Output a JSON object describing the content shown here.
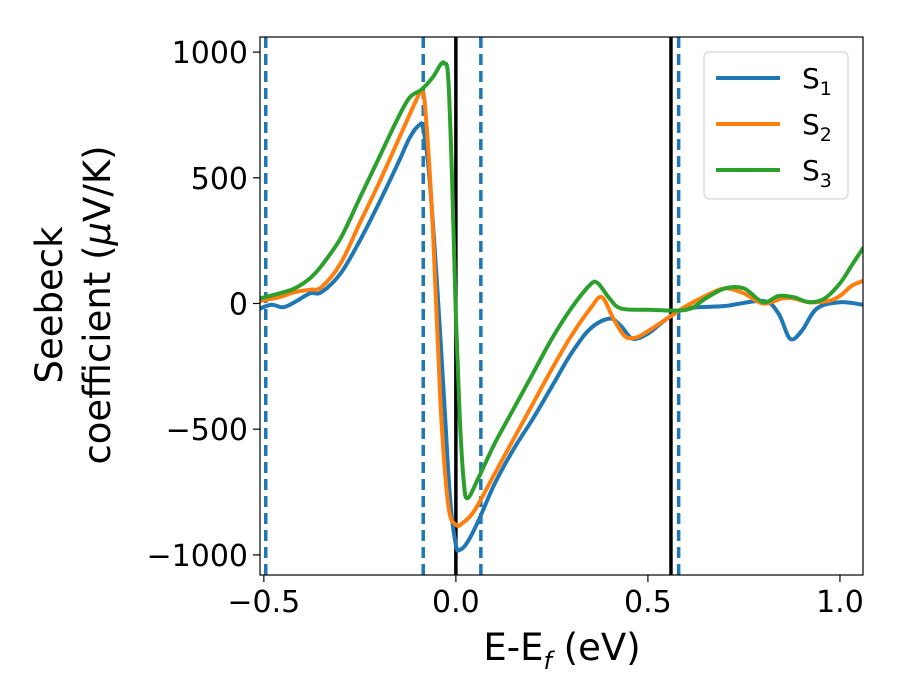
{
  "chart_data": {
    "type": "line",
    "xlabel": {
      "main": "E-E",
      "sub": "f",
      "unit": " (eV)"
    },
    "ylabel": {
      "line1": "Seebeck",
      "line2_text": "coefficient  (",
      "line2_mu": "μ",
      "line2_unit": "V/K)"
    },
    "xlim": [
      -0.51,
      1.06
    ],
    "ylim": [
      -1080,
      1060
    ],
    "x_ticks": [
      -0.5,
      0.0,
      0.5,
      1.0
    ],
    "x_tick_labels": [
      "−0.5",
      "0.0",
      "0.5",
      "1.0"
    ],
    "y_ticks": [
      -1000,
      -500,
      0,
      500,
      1000
    ],
    "y_tick_labels": [
      "−1000",
      "−500",
      "0",
      "500",
      "1000"
    ],
    "legend_position": "top-right",
    "reference_lines": [
      {
        "x": 0.0,
        "style": "solid",
        "color": "#000000"
      },
      {
        "x": 0.56,
        "style": "solid",
        "color": "#000000"
      },
      {
        "x": -0.495,
        "style": "dashed",
        "color": "#1f77b4"
      },
      {
        "x": -0.085,
        "style": "dashed",
        "color": "#1f77b4"
      },
      {
        "x": 0.065,
        "style": "dashed",
        "color": "#1f77b4"
      },
      {
        "x": 0.58,
        "style": "dashed",
        "color": "#1f77b4"
      }
    ],
    "series": [
      {
        "name": "S",
        "sub": "1",
        "color": "#1f77b4",
        "points": [
          [
            -0.51,
            -20
          ],
          [
            -0.48,
            -5
          ],
          [
            -0.45,
            -15
          ],
          [
            -0.42,
            5
          ],
          [
            -0.38,
            40
          ],
          [
            -0.35,
            45
          ],
          [
            -0.3,
            120
          ],
          [
            -0.25,
            250
          ],
          [
            -0.2,
            400
          ],
          [
            -0.15,
            560
          ],
          [
            -0.12,
            660
          ],
          [
            -0.095,
            710
          ],
          [
            -0.085,
            695
          ],
          [
            -0.07,
            520
          ],
          [
            -0.05,
            100
          ],
          [
            -0.03,
            -400
          ],
          [
            -0.015,
            -780
          ],
          [
            0.0,
            -960
          ],
          [
            0.01,
            -980
          ],
          [
            0.03,
            -950
          ],
          [
            0.06,
            -860
          ],
          [
            0.1,
            -720
          ],
          [
            0.15,
            -580
          ],
          [
            0.2,
            -460
          ],
          [
            0.25,
            -330
          ],
          [
            0.3,
            -200
          ],
          [
            0.35,
            -100
          ],
          [
            0.4,
            -60
          ],
          [
            0.43,
            -90
          ],
          [
            0.46,
            -140
          ],
          [
            0.5,
            -120
          ],
          [
            0.55,
            -60
          ],
          [
            0.6,
            -20
          ],
          [
            0.7,
            -10
          ],
          [
            0.8,
            10
          ],
          [
            0.84,
            -40
          ],
          [
            0.87,
            -140
          ],
          [
            0.9,
            -110
          ],
          [
            0.94,
            -20
          ],
          [
            1.0,
            5
          ],
          [
            1.06,
            -5
          ]
        ]
      },
      {
        "name": "S",
        "sub": "2",
        "color": "#ff7f0e",
        "points": [
          [
            -0.51,
            10
          ],
          [
            -0.46,
            25
          ],
          [
            -0.42,
            45
          ],
          [
            -0.38,
            55
          ],
          [
            -0.35,
            65
          ],
          [
            -0.3,
            160
          ],
          [
            -0.25,
            320
          ],
          [
            -0.2,
            480
          ],
          [
            -0.15,
            650
          ],
          [
            -0.1,
            820
          ],
          [
            -0.09,
            840
          ],
          [
            -0.08,
            780
          ],
          [
            -0.06,
            300
          ],
          [
            -0.04,
            -400
          ],
          [
            -0.02,
            -800
          ],
          [
            0.0,
            -880
          ],
          [
            0.02,
            -870
          ],
          [
            0.05,
            -820
          ],
          [
            0.1,
            -680
          ],
          [
            0.15,
            -540
          ],
          [
            0.2,
            -400
          ],
          [
            0.25,
            -260
          ],
          [
            0.3,
            -130
          ],
          [
            0.35,
            -20
          ],
          [
            0.38,
            25
          ],
          [
            0.41,
            -60
          ],
          [
            0.44,
            -130
          ],
          [
            0.47,
            -135
          ],
          [
            0.5,
            -110
          ],
          [
            0.55,
            -60
          ],
          [
            0.6,
            -10
          ],
          [
            0.65,
            30
          ],
          [
            0.7,
            60
          ],
          [
            0.75,
            40
          ],
          [
            0.8,
            0
          ],
          [
            0.85,
            20
          ],
          [
            0.88,
            20
          ],
          [
            0.92,
            5
          ],
          [
            0.97,
            10
          ],
          [
            1.0,
            30
          ],
          [
            1.03,
            70
          ],
          [
            1.06,
            90
          ]
        ]
      },
      {
        "name": "S",
        "sub": "3",
        "color": "#2ca02c",
        "points": [
          [
            -0.51,
            20
          ],
          [
            -0.46,
            40
          ],
          [
            -0.42,
            60
          ],
          [
            -0.38,
            100
          ],
          [
            -0.35,
            150
          ],
          [
            -0.3,
            260
          ],
          [
            -0.25,
            420
          ],
          [
            -0.2,
            580
          ],
          [
            -0.15,
            740
          ],
          [
            -0.12,
            820
          ],
          [
            -0.09,
            850
          ],
          [
            -0.06,
            900
          ],
          [
            -0.04,
            950
          ],
          [
            -0.03,
            955
          ],
          [
            -0.02,
            900
          ],
          [
            -0.01,
            500
          ],
          [
            0.0,
            -50
          ],
          [
            0.01,
            -450
          ],
          [
            0.02,
            -700
          ],
          [
            0.03,
            -775
          ],
          [
            0.06,
            -690
          ],
          [
            0.1,
            -560
          ],
          [
            0.15,
            -420
          ],
          [
            0.2,
            -280
          ],
          [
            0.25,
            -140
          ],
          [
            0.3,
            -20
          ],
          [
            0.35,
            75
          ],
          [
            0.37,
            80
          ],
          [
            0.4,
            20
          ],
          [
            0.43,
            -20
          ],
          [
            0.5,
            -25
          ],
          [
            0.6,
            -25
          ],
          [
            0.65,
            20
          ],
          [
            0.7,
            60
          ],
          [
            0.75,
            60
          ],
          [
            0.8,
            5
          ],
          [
            0.84,
            30
          ],
          [
            0.88,
            25
          ],
          [
            0.92,
            5
          ],
          [
            0.96,
            20
          ],
          [
            1.0,
            80
          ],
          [
            1.03,
            150
          ],
          [
            1.06,
            220
          ]
        ]
      }
    ]
  }
}
